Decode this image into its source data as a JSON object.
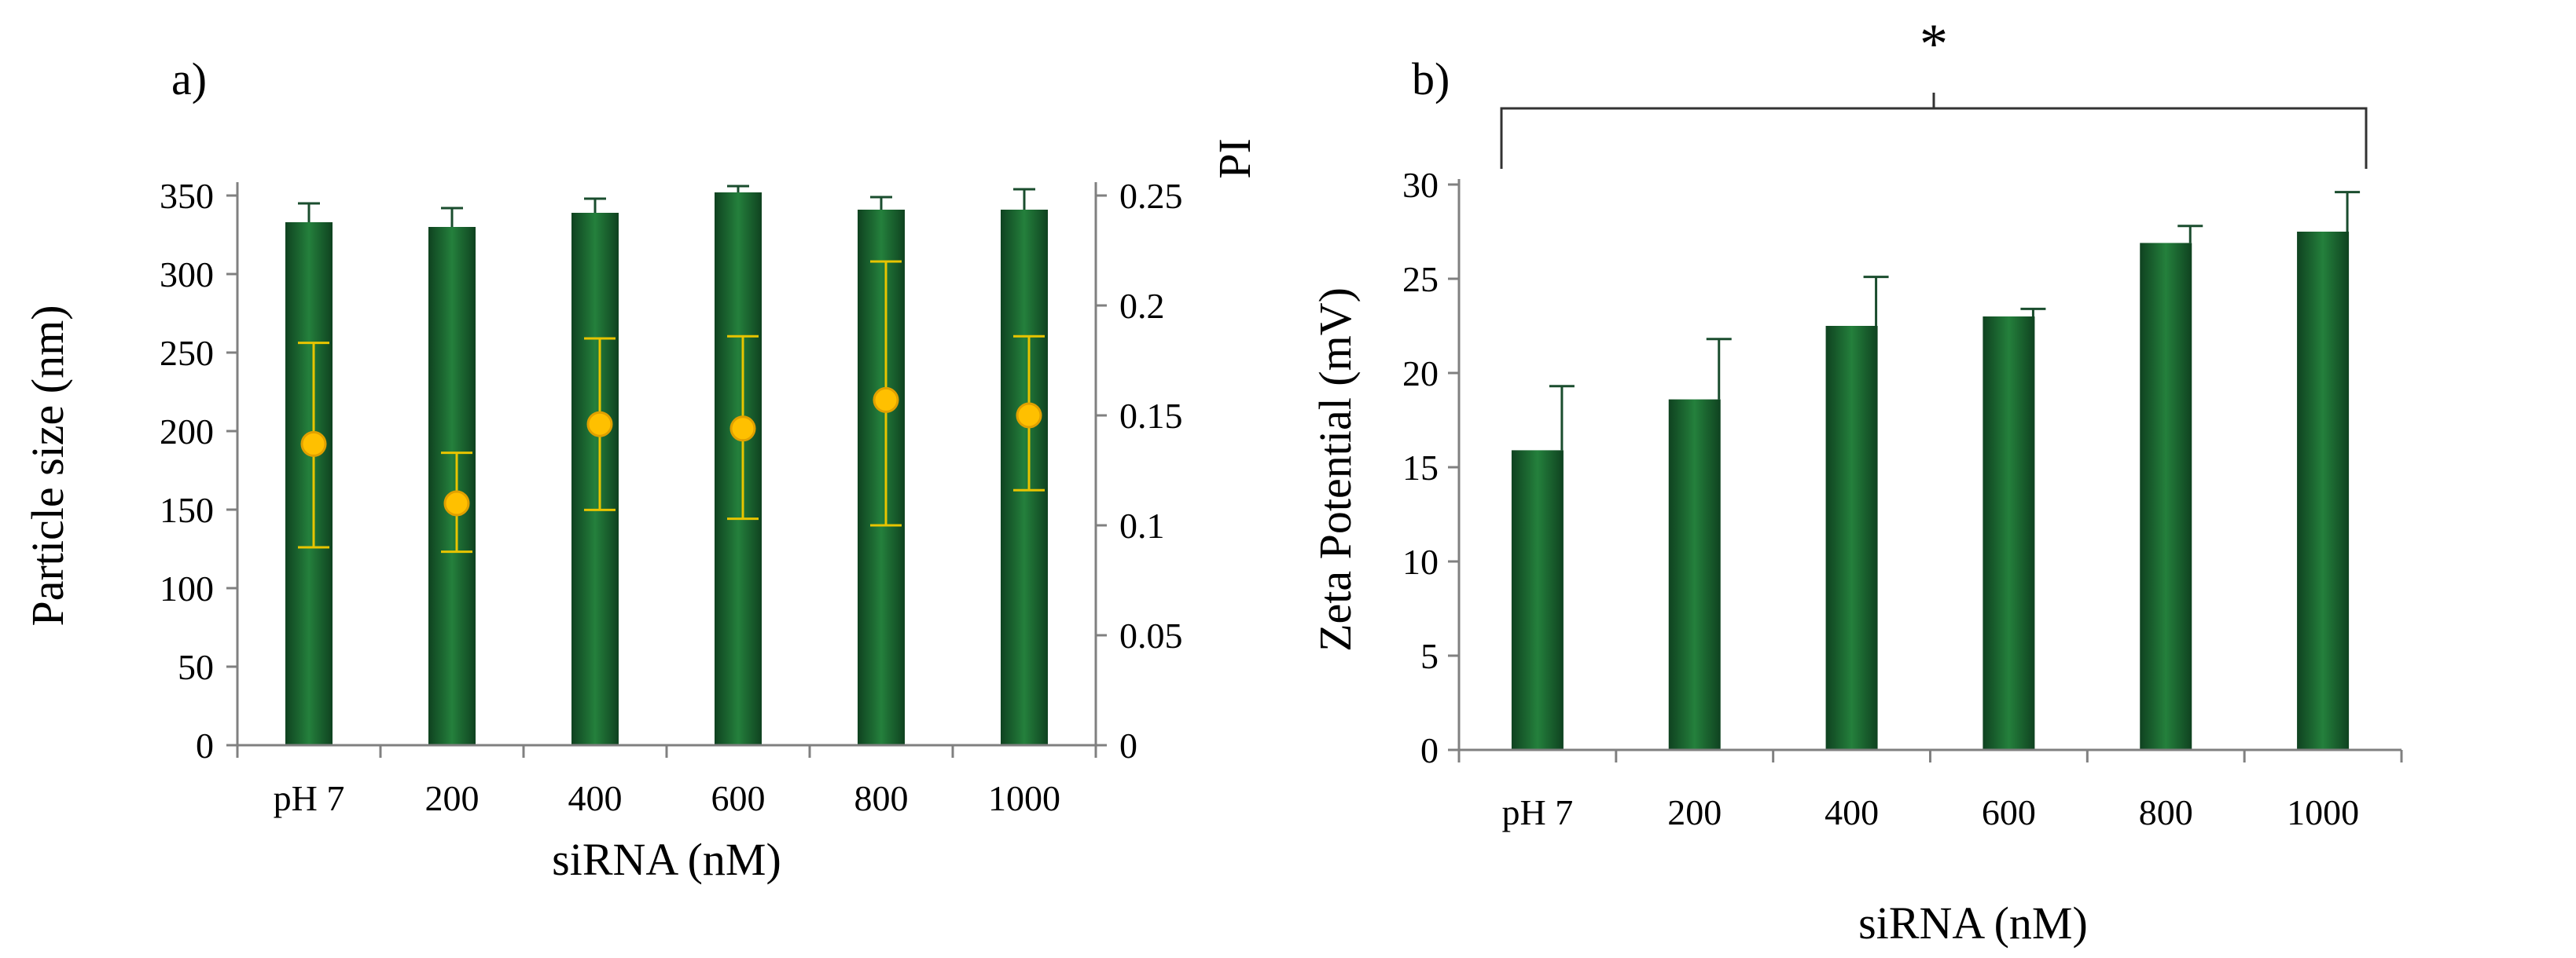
{
  "colors": {
    "bar": "#1f6b33",
    "bar_dark": "#12471f",
    "marker": "#ffc000",
    "marker_edge": "#e0a000",
    "pi_err": "#e8c400"
  },
  "chart_data": [
    {
      "panel_label": "a)",
      "type": "bar",
      "categories": [
        "pH 7",
        "200",
        "400",
        "600",
        "800",
        "1000"
      ],
      "xlabel": "siRNA (nM)",
      "ylabel": "Particle size (nm)",
      "ylim": [
        0,
        350
      ],
      "yticks": [
        "0",
        "50",
        "100",
        "150",
        "200",
        "250",
        "300",
        "350"
      ],
      "values": [
        333,
        330,
        339,
        352,
        341,
        341
      ],
      "errors": [
        12,
        12,
        9,
        4,
        8,
        13
      ],
      "y2label": "PI",
      "y2lim": [
        0,
        0.25
      ],
      "y2ticks": [
        "0",
        "0.05",
        "0.1",
        "0.15",
        "0.2",
        "0.25"
      ],
      "pi_values": [
        0.137,
        0.11,
        0.146,
        0.144,
        0.157,
        0.15
      ],
      "pi_err_upper": [
        0.183,
        0.133,
        0.185,
        0.186,
        0.22,
        0.186
      ],
      "pi_err_lower": [
        0.09,
        0.088,
        0.107,
        0.103,
        0.1,
        0.116
      ]
    },
    {
      "panel_label": "b)",
      "type": "bar",
      "categories": [
        "pH 7",
        "200",
        "400",
        "600",
        "800",
        "1000"
      ],
      "xlabel": "siRNA (nM)",
      "ylabel": "Zeta Potential (mV)",
      "ylim": [
        0,
        30
      ],
      "yticks": [
        "0",
        "5",
        "10",
        "15",
        "20",
        "25",
        "30"
      ],
      "values": [
        15.9,
        18.6,
        22.5,
        23.0,
        26.9,
        27.5
      ],
      "errors": [
        3.4,
        3.2,
        2.6,
        0.4,
        0.9,
        2.1
      ],
      "annotation": "*"
    }
  ]
}
